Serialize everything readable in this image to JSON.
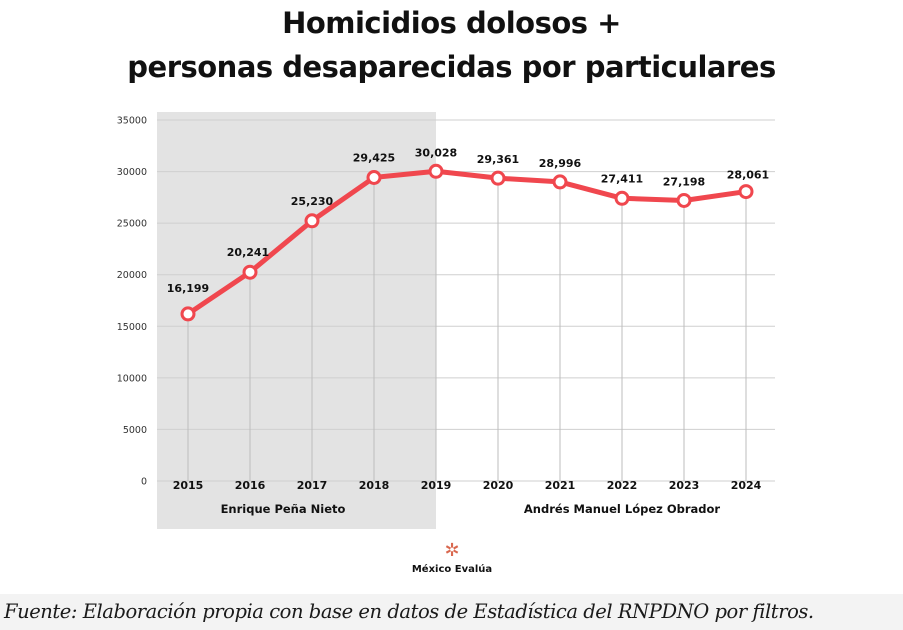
{
  "chart_data": {
    "type": "line",
    "title": "Homicidios dolosos + personas desaparecidas por particulares",
    "title_lines": [
      "Homicidios dolosos +",
      "personas desaparecidas por particulares"
    ],
    "xlabel": "",
    "ylabel": "",
    "x": [
      "2015",
      "2016",
      "2017",
      "2018",
      "2019",
      "2020",
      "2021",
      "2022",
      "2023",
      "2024"
    ],
    "series": [
      {
        "name": "Homicidios dolosos + personas desaparecidas por particulares",
        "values": [
          16199,
          20241,
          25230,
          29425,
          30028,
          29361,
          28996,
          27411,
          27198,
          28061
        ],
        "labels": [
          "16,199",
          "20,241",
          "25,230",
          "29,425",
          "30,028",
          "29,361",
          "28,996",
          "27,411",
          "27,198",
          "28,061"
        ],
        "color": "#f0474e"
      }
    ],
    "ylim": [
      0,
      35000
    ],
    "yticks": [
      0,
      5000,
      10000,
      15000,
      20000,
      25000,
      30000,
      35000
    ],
    "ytick_labels": [
      "0",
      "5000",
      "10000",
      "15000",
      "20000",
      "25000",
      "30000",
      "35000"
    ],
    "grid": true,
    "legend": "none",
    "periods": [
      {
        "label": "Enrique Peña Nieto",
        "from": "2015",
        "to": "2019",
        "shaded": true,
        "color": "#e3e3e3"
      },
      {
        "label": "Andrés Manuel López Obrador",
        "from": "2019",
        "to": "2024",
        "shaded": false
      }
    ]
  },
  "logo": {
    "mark": "✲",
    "name": "México Evalúa"
  },
  "source_note": "Fuente: Elaboración propia con base en datos de Estadística del RNPDNO por filtros."
}
